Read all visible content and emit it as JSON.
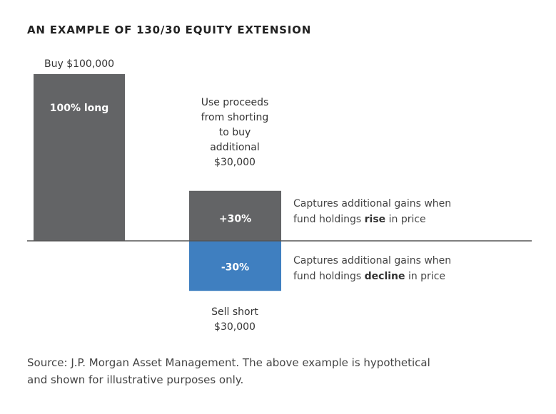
{
  "title": "AN EXAMPLE OF 130/30 EQUITY EXTENSION",
  "chart_data": {
    "type": "bar",
    "title": "AN EXAMPLE OF 130/30 EQUITY EXTENSION",
    "bars": [
      {
        "id": "long",
        "value": 100,
        "label": "100% long",
        "top_label": "Buy $100,000",
        "color": "#636466"
      },
      {
        "id": "plus",
        "value": 30,
        "label": "+30%",
        "top_label": [
          "Use proceeds",
          "from shorting",
          "to buy",
          "additional",
          "$30,000"
        ],
        "color": "#636466"
      },
      {
        "id": "minus",
        "value": -30,
        "label": "-30%",
        "bottom_label": [
          "Sell short",
          "$30,000"
        ],
        "color": "#3f7fc0"
      }
    ],
    "annotations": [
      {
        "line1": "Captures additional gains when",
        "line2_pre": "fund holdings ",
        "line2_bold": "rise",
        "line2_post": " in price"
      },
      {
        "line1": "Captures additional gains when",
        "line2_pre": "fund holdings ",
        "line2_bold": "decline",
        "line2_post": " in price"
      }
    ],
    "ylim": [
      -30,
      100
    ],
    "grid": false
  },
  "source": [
    "Source: J.P. Morgan Asset Management. The above example is hypothetical",
    "and shown for illustrative purposes only."
  ]
}
